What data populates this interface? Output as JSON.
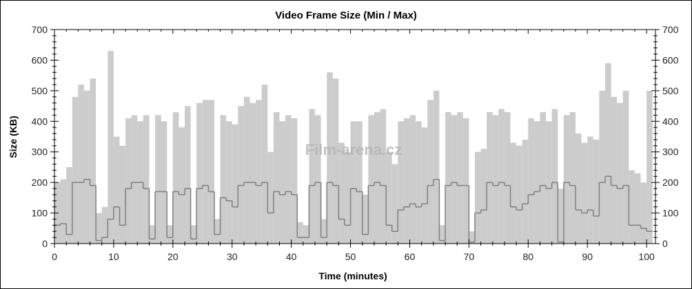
{
  "chart_data": {
    "type": "area",
    "title": "Video Frame Size (Min / Max)",
    "xlabel": "Time (minutes)",
    "ylabel": "Size (KB)",
    "xlim": [
      0,
      101.5
    ],
    "ylim": [
      0,
      700
    ],
    "x_ticks": [
      0,
      10,
      20,
      30,
      40,
      50,
      60,
      70,
      80,
      90,
      100
    ],
    "y_ticks": [
      0,
      100,
      200,
      300,
      400,
      500,
      600,
      700
    ],
    "grid": false,
    "legend": "none",
    "watermark": "Film-arena.cz",
    "colors": {
      "max": "#cccccc",
      "min": "#7f7f7f"
    },
    "x": [
      0,
      1,
      2,
      3,
      4,
      5,
      6,
      7,
      8,
      9,
      10,
      11,
      12,
      13,
      14,
      15,
      16,
      17,
      18,
      19,
      20,
      21,
      22,
      23,
      24,
      25,
      26,
      27,
      28,
      29,
      30,
      31,
      32,
      33,
      34,
      35,
      36,
      37,
      38,
      39,
      40,
      41,
      42,
      43,
      44,
      45,
      46,
      47,
      48,
      49,
      50,
      51,
      52,
      53,
      54,
      55,
      56,
      57,
      58,
      59,
      60,
      61,
      62,
      63,
      64,
      65,
      66,
      67,
      68,
      69,
      70,
      71,
      72,
      73,
      74,
      75,
      76,
      77,
      78,
      79,
      80,
      81,
      82,
      83,
      84,
      85,
      86,
      87,
      88,
      89,
      90,
      91,
      92,
      93,
      94,
      95,
      96,
      97,
      98,
      99,
      100
    ],
    "series": [
      {
        "key": "max",
        "values": [
          200,
          210,
          250,
          480,
          520,
          500,
          540,
          100,
          120,
          630,
          350,
          320,
          410,
          420,
          400,
          420,
          60,
          420,
          400,
          60,
          430,
          380,
          450,
          60,
          460,
          470,
          470,
          80,
          420,
          400,
          390,
          450,
          480,
          460,
          470,
          520,
          300,
          430,
          400,
          420,
          410,
          70,
          60,
          440,
          420,
          80,
          560,
          540,
          330,
          300,
          400,
          400,
          160,
          420,
          430,
          440,
          300,
          260,
          400,
          410,
          420,
          400,
          380,
          470,
          500,
          60,
          430,
          420,
          430,
          410,
          40,
          300,
          310,
          430,
          420,
          440,
          430,
          330,
          320,
          340,
          410,
          400,
          430,
          400,
          440,
          180,
          420,
          430,
          360,
          330,
          350,
          340,
          500,
          590,
          480,
          460,
          500,
          240,
          230,
          200,
          500
        ]
      },
      {
        "key": "min",
        "values": [
          60,
          65,
          30,
          200,
          200,
          210,
          190,
          10,
          20,
          80,
          120,
          60,
          180,
          200,
          200,
          180,
          15,
          170,
          170,
          20,
          170,
          160,
          180,
          15,
          180,
          190,
          170,
          30,
          150,
          140,
          120,
          190,
          200,
          200,
          190,
          200,
          100,
          170,
          160,
          170,
          160,
          20,
          20,
          190,
          200,
          20,
          200,
          190,
          80,
          60,
          180,
          170,
          30,
          190,
          200,
          190,
          60,
          40,
          110,
          120,
          130,
          120,
          130,
          190,
          210,
          10,
          190,
          200,
          190,
          190,
          5,
          100,
          110,
          200,
          190,
          200,
          190,
          120,
          110,
          130,
          160,
          170,
          190,
          180,
          200,
          5,
          200,
          190,
          110,
          100,
          110,
          90,
          200,
          220,
          190,
          180,
          190,
          60,
          60,
          50,
          40
        ]
      }
    ]
  }
}
